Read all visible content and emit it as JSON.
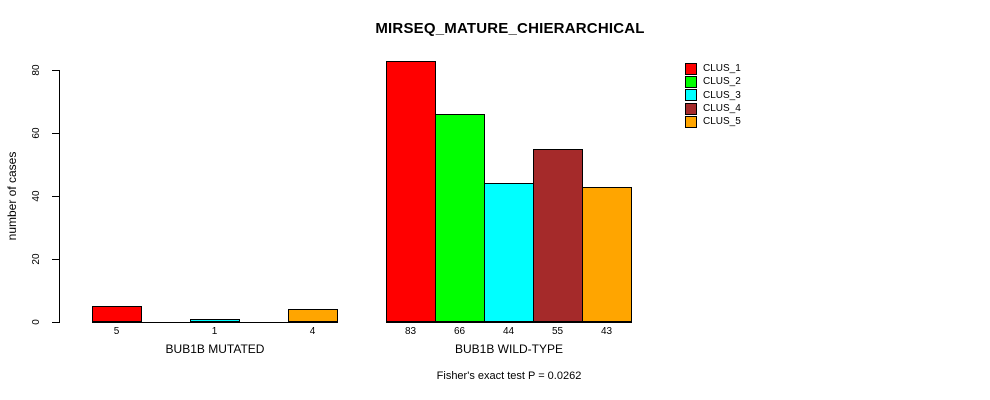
{
  "chart_data": {
    "type": "bar",
    "title": "MIRSEQ_MATURE_CHIERARCHICAL",
    "xlabel": "",
    "ylabel": "number of cases",
    "ylim": [
      0,
      80
    ],
    "yticks": [
      0,
      20,
      40,
      60,
      80
    ],
    "grid": false,
    "legend_position": "topright",
    "categories": [
      "BUB1B MUTATED",
      "BUB1B WILD-TYPE"
    ],
    "series": [
      {
        "name": "CLUS_1",
        "color": "#FF0000",
        "values": [
          5,
          83
        ]
      },
      {
        "name": "CLUS_2",
        "color": "#00FF00",
        "values": [
          0,
          66
        ]
      },
      {
        "name": "CLUS_3",
        "color": "#00FFFF",
        "values": [
          1,
          44
        ]
      },
      {
        "name": "CLUS_4",
        "color": "#A52A2A",
        "values": [
          0,
          55
        ]
      },
      {
        "name": "CLUS_5",
        "color": "#FFA500",
        "values": [
          4,
          43
        ]
      }
    ],
    "bar_value_labels": [
      [
        "5",
        "",
        "1",
        "",
        "4"
      ],
      [
        "83",
        "66",
        "44",
        "55",
        "43"
      ]
    ],
    "annotation": "Fisher's exact test P = 0.0262"
  },
  "colors": {
    "axis": "#000000",
    "background": "#FFFFFF"
  }
}
